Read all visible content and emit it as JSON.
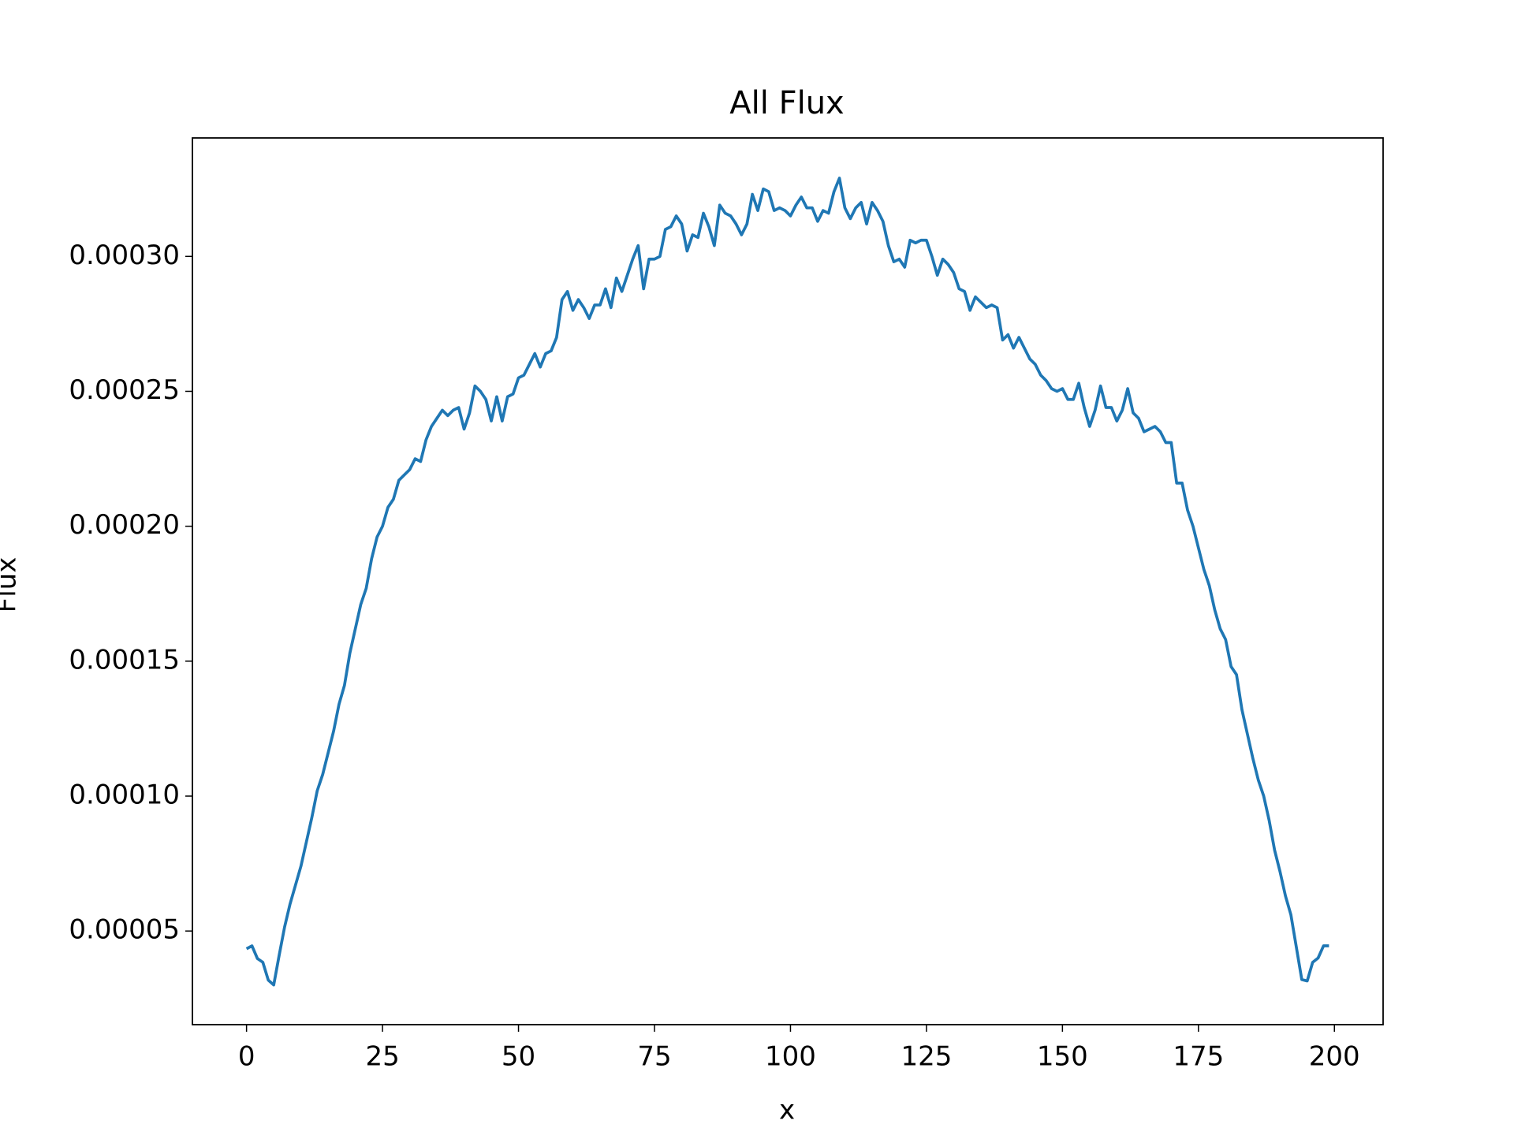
{
  "chart_data": {
    "type": "line",
    "title": "All Flux",
    "xlabel": "x",
    "ylabel": "Flux",
    "x": [
      0,
      1,
      2,
      3,
      4,
      5,
      6,
      7,
      8,
      9,
      10,
      11,
      12,
      13,
      14,
      15,
      16,
      17,
      18,
      19,
      20,
      21,
      22,
      23,
      24,
      25,
      26,
      27,
      28,
      29,
      30,
      31,
      32,
      33,
      34,
      35,
      36,
      37,
      38,
      39,
      40,
      41,
      42,
      43,
      44,
      45,
      46,
      47,
      48,
      49,
      50,
      51,
      52,
      53,
      54,
      55,
      56,
      57,
      58,
      59,
      60,
      61,
      62,
      63,
      64,
      65,
      66,
      67,
      68,
      69,
      70,
      71,
      72,
      73,
      74,
      75,
      76,
      77,
      78,
      79,
      80,
      81,
      82,
      83,
      84,
      85,
      86,
      87,
      88,
      89,
      90,
      91,
      92,
      93,
      94,
      95,
      96,
      97,
      98,
      99,
      100,
      101,
      102,
      103,
      104,
      105,
      106,
      107,
      108,
      109,
      110,
      111,
      112,
      113,
      114,
      115,
      116,
      117,
      118,
      119,
      120,
      121,
      122,
      123,
      124,
      125,
      126,
      127,
      128,
      129,
      130,
      131,
      132,
      133,
      134,
      135,
      136,
      137,
      138,
      139,
      140,
      141,
      142,
      143,
      144,
      145,
      146,
      147,
      148,
      149,
      150,
      151,
      152,
      153,
      154,
      155,
      156,
      157,
      158,
      159,
      160,
      161,
      162,
      163,
      164,
      165,
      166,
      167,
      168,
      169,
      170,
      171,
      172,
      173,
      174,
      175,
      176,
      177,
      178,
      179,
      180,
      181,
      182,
      183,
      184,
      185,
      186,
      187,
      188,
      189,
      190,
      191,
      192,
      193,
      194,
      195,
      196,
      197,
      198,
      199
    ],
    "series": [
      {
        "color": "#1f77b4",
        "values": [
          4.34e-05,
          4.45e-05,
          3.98e-05,
          3.84e-05,
          3.18e-05,
          3e-05,
          4.1e-05,
          5.15e-05,
          6e-05,
          6.7e-05,
          7.4e-05,
          8.3e-05,
          9.2e-05,
          0.000102,
          0.000108,
          0.000116,
          0.000124,
          0.000134,
          0.000141,
          0.000153,
          0.000162,
          0.000171,
          0.000177,
          0.000188,
          0.000196,
          0.0002,
          0.000207,
          0.00021,
          0.000217,
          0.000219,
          0.000221,
          0.000225,
          0.000224,
          0.000232,
          0.000237,
          0.00024,
          0.000243,
          0.000241,
          0.000243,
          0.000244,
          0.000236,
          0.000242,
          0.000252,
          0.00025,
          0.000247,
          0.000239,
          0.000248,
          0.000239,
          0.000248,
          0.000249,
          0.000255,
          0.000256,
          0.00026,
          0.000264,
          0.000259,
          0.000264,
          0.000265,
          0.00027,
          0.000284,
          0.000287,
          0.00028,
          0.000284,
          0.000281,
          0.000277,
          0.000282,
          0.000282,
          0.000288,
          0.000281,
          0.000292,
          0.000287,
          0.000293,
          0.000299,
          0.000304,
          0.000288,
          0.000299,
          0.000299,
          0.0003,
          0.00031,
          0.000311,
          0.000315,
          0.000312,
          0.000302,
          0.000308,
          0.000307,
          0.000316,
          0.000311,
          0.000304,
          0.000319,
          0.000316,
          0.000315,
          0.000312,
          0.000308,
          0.000312,
          0.000323,
          0.000317,
          0.000325,
          0.000324,
          0.000317,
          0.000318,
          0.000317,
          0.000315,
          0.000319,
          0.000322,
          0.000318,
          0.000318,
          0.000313,
          0.000317,
          0.000316,
          0.000324,
          0.000329,
          0.000318,
          0.000314,
          0.000318,
          0.00032,
          0.000312,
          0.00032,
          0.000317,
          0.000313,
          0.000304,
          0.000298,
          0.000299,
          0.000296,
          0.000306,
          0.000305,
          0.000306,
          0.000306,
          0.0003,
          0.000293,
          0.000299,
          0.000297,
          0.000294,
          0.000288,
          0.000287,
          0.00028,
          0.000285,
          0.000283,
          0.000281,
          0.000282,
          0.000281,
          0.000269,
          0.000271,
          0.000266,
          0.00027,
          0.000266,
          0.000262,
          0.00026,
          0.000256,
          0.000254,
          0.000251,
          0.00025,
          0.000251,
          0.000247,
          0.000247,
          0.000253,
          0.000244,
          0.000237,
          0.000243,
          0.000252,
          0.000244,
          0.000244,
          0.000239,
          0.000243,
          0.000251,
          0.000242,
          0.00024,
          0.000235,
          0.000236,
          0.000237,
          0.000235,
          0.000231,
          0.000231,
          0.000216,
          0.000216,
          0.000206,
          0.0002,
          0.000192,
          0.000184,
          0.000178,
          0.000169,
          0.000162,
          0.000158,
          0.000148,
          0.000145,
          0.000132,
          0.000123,
          0.000114,
          0.000106,
          0.0001,
          9.1e-05,
          8e-05,
          7.2e-05,
          6.3e-05,
          5.6e-05,
          4.4e-05,
          3.2e-05,
          3.15e-05,
          3.84e-05,
          4e-05,
          4.45e-05,
          4.45e-05
        ]
      }
    ],
    "xlim": [
      -9.95,
      208.95
    ],
    "xticks": [
      0,
      25,
      50,
      75,
      100,
      125,
      150,
      175,
      200
    ],
    "ylim": [
      1.53e-05,
      0.0003439
    ],
    "yticks": [
      5e-05,
      {
        "value": 0.0001,
        "label": "0.00010"
      },
      {
        "value": 0.00015,
        "label": "0.00015"
      },
      {
        "value": 0.0002,
        "label": "0.00020"
      },
      {
        "value": 0.00025,
        "label": "0.00025"
      },
      {
        "value": 0.0003,
        "label": "0.00030"
      }
    ]
  }
}
